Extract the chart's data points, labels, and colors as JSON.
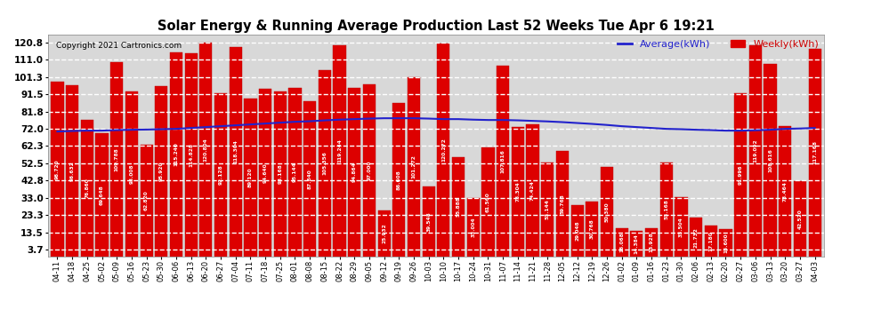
{
  "title": "Solar Energy & Running Average Production Last 52 Weeks Tue Apr 6 19:21",
  "copyright": "Copyright 2021 Cartronics.com",
  "legend_avg": "Average(kWh)",
  "legend_weekly": "Weekly(kWh)",
  "yticks": [
    3.7,
    13.5,
    23.3,
    33.0,
    42.8,
    52.5,
    62.3,
    72.0,
    81.8,
    91.5,
    101.3,
    111.0,
    120.8
  ],
  "ylim": [
    0,
    125
  ],
  "bar_color": "#dd0000",
  "bar_edge_color": "#bb0000",
  "avg_line_color": "#2222cc",
  "weekly_label_color": "#cc0000",
  "background_color": "#ffffff",
  "plot_bg_color": "#d8d8d8",
  "grid_color": "#ffffff",
  "categories": [
    "04-11",
    "04-18",
    "04-25",
    "05-02",
    "05-09",
    "05-16",
    "05-23",
    "05-30",
    "06-06",
    "06-13",
    "06-20",
    "06-27",
    "07-04",
    "07-11",
    "07-18",
    "07-25",
    "08-01",
    "08-08",
    "08-15",
    "08-22",
    "08-29",
    "09-05",
    "09-12",
    "09-19",
    "09-26",
    "10-03",
    "10-10",
    "10-17",
    "10-24",
    "10-31",
    "11-07",
    "11-14",
    "11-21",
    "11-28",
    "12-05",
    "12-12",
    "12-19",
    "12-26",
    "01-02",
    "01-09",
    "01-16",
    "01-23",
    "01-30",
    "02-06",
    "02-13",
    "02-20",
    "02-27",
    "03-06",
    "03-13",
    "03-20",
    "03-27",
    "04-03"
  ],
  "weekly_values": [
    98.72,
    96.632,
    76.86,
    69.648,
    109.788,
    93.008,
    62.82,
    95.92,
    115.24,
    114.828,
    120.804,
    92.128,
    118.304,
    89.12,
    94.64,
    93.168,
    95.144,
    87.84,
    105.356,
    119.244,
    94.864,
    97.0,
    25.932,
    86.608,
    101.272,
    39.548,
    120.272,
    55.888,
    33.004,
    61.56,
    107.816,
    73.304,
    74.424,
    53.144,
    59.768,
    29.048,
    30.768,
    50.38,
    16.068,
    14.384,
    15.928,
    53.168,
    33.504,
    21.732,
    17.18,
    15.6,
    91.996,
    119.092,
    108.616,
    73.464,
    42.52,
    117.168
  ],
  "avg_values": [
    70.5,
    70.8,
    71.0,
    71.0,
    71.3,
    71.5,
    71.6,
    71.8,
    72.0,
    72.5,
    73.0,
    73.5,
    74.0,
    74.5,
    75.0,
    75.5,
    76.0,
    76.3,
    76.8,
    77.2,
    77.5,
    77.8,
    78.0,
    78.0,
    78.0,
    77.8,
    77.5,
    77.5,
    77.2,
    77.0,
    77.0,
    76.8,
    76.5,
    76.2,
    75.8,
    75.3,
    74.8,
    74.2,
    73.5,
    73.0,
    72.5,
    72.0,
    71.8,
    71.5,
    71.3,
    71.0,
    71.0,
    71.2,
    71.5,
    72.0,
    72.2,
    72.5
  ]
}
